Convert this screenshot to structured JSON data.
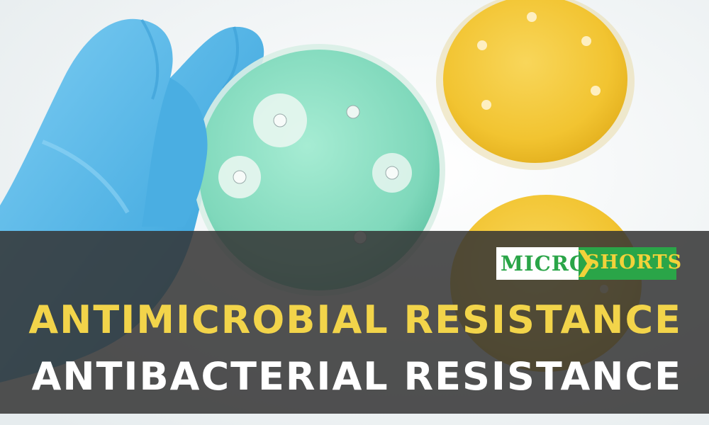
{
  "image": {
    "description_tags": [
      "gloved-hand",
      "petri-dish",
      "antibiotic-disks",
      "yellow-agar-plates"
    ]
  },
  "logo": {
    "part1": "MICRO",
    "part2": "SHORTS"
  },
  "headline": {
    "line1": "ANTIMICROBIAL RESISTANCE",
    "line2": "ANTIBACTERIAL RESISTANCE"
  },
  "colors": {
    "headline_primary": "#f2d44a",
    "headline_secondary": "#ffffff",
    "banner_overlay": "#343434",
    "logo_green": "#2aa548",
    "logo_yellow": "#f2d23a",
    "agar_green": "#8fe0c4",
    "glove_blue": "#5bb8e8",
    "agar_yellow": "#f2c431"
  }
}
